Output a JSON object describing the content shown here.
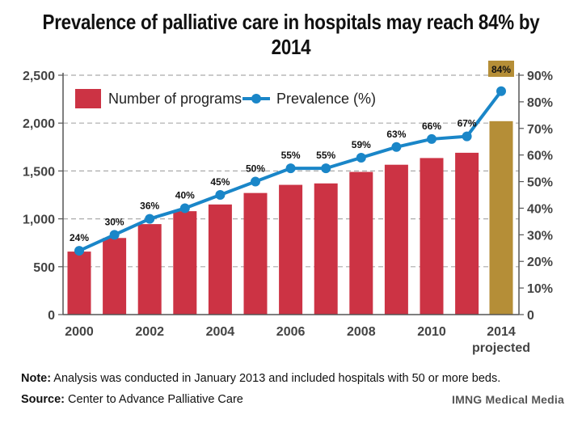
{
  "title": "Prevalence of palliative care in hospitals may reach 84% by 2014",
  "note": {
    "label": "Note:",
    "text": " Analysis was conducted in January 2013 and included hospitals with 50 or more beds."
  },
  "source": {
    "label": "Source:",
    "text": " Center to Advance Palliative Care"
  },
  "credit": "IMNG Medical Media",
  "colors": {
    "bar": "#cc3344",
    "bar_projected": "#b58e37",
    "line": "#1a86c8",
    "grid": "#aaaaaa",
    "axis_text": "#444444"
  },
  "chart_data": {
    "type": "bar+line",
    "title": "Prevalence of palliative care in hospitals may reach 84% by 2014",
    "categories": [
      "2000",
      "2001",
      "2002",
      "2003",
      "2004",
      "2005",
      "2006",
      "2007",
      "2008",
      "2009",
      "2010",
      "2011",
      "2014"
    ],
    "x_tick_labels": [
      {
        "category": "2000",
        "label": "2000"
      },
      {
        "category": "2002",
        "label": "2002"
      },
      {
        "category": "2004",
        "label": "2004"
      },
      {
        "category": "2006",
        "label": "2006"
      },
      {
        "category": "2008",
        "label": "2008"
      },
      {
        "category": "2010",
        "label": "2010"
      },
      {
        "category": "2014",
        "label": "2014",
        "sublabel": "projected"
      }
    ],
    "series": [
      {
        "name": "Number of programs",
        "type": "bar",
        "axis": "left",
        "values": [
          658,
          800,
          945,
          1080,
          1150,
          1270,
          1355,
          1370,
          1490,
          1565,
          1635,
          1690,
          2020
        ]
      },
      {
        "name": "Prevalence (%)",
        "type": "line",
        "axis": "right",
        "values": [
          24,
          30,
          36,
          40,
          45,
          50,
          55,
          55,
          59,
          63,
          66,
          67,
          84
        ],
        "labels": [
          "24%",
          "30%",
          "36%",
          "40%",
          "45%",
          "50%",
          "55%",
          "55%",
          "59%",
          "63%",
          "66%",
          "67%",
          "84%"
        ]
      }
    ],
    "y_left": {
      "min": 0,
      "max": 2500,
      "ticks": [
        "0",
        "500",
        "1,000",
        "1,500",
        "2,000",
        "2,500"
      ],
      "values": [
        0,
        500,
        1000,
        1500,
        2000,
        2500
      ]
    },
    "y_right": {
      "min": 0,
      "max": 90,
      "ticks": [
        "0",
        "10%",
        "20%",
        "30%",
        "40%",
        "50%",
        "60%",
        "70%",
        "80%",
        "90%"
      ],
      "values": [
        0,
        10,
        20,
        30,
        40,
        50,
        60,
        70,
        80,
        90
      ]
    },
    "legend": [
      {
        "name": "Number of programs",
        "kind": "bar"
      },
      {
        "name": "Prevalence (%)",
        "kind": "line"
      }
    ],
    "legend_position": "top-left",
    "projected_index": 12,
    "grid": true
  }
}
